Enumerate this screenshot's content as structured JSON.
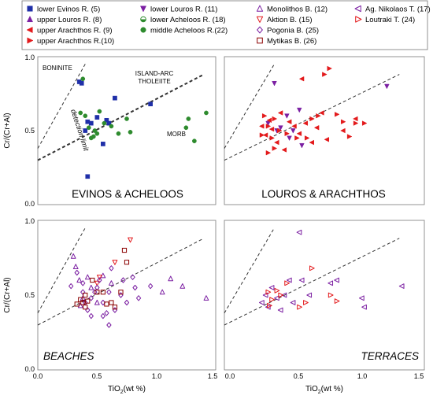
{
  "chart_data": [
    {
      "panel": "EVINOS & ACHELOOS",
      "type": "scatter",
      "xlabel": "",
      "ylabel": "Cr/(Cr+Al)",
      "xlim": [
        0,
        1.5
      ],
      "ylim": [
        0,
        1.0
      ],
      "xticks": [],
      "yticks": [
        "0.0",
        "0.5",
        "1.0"
      ],
      "annotations": [
        "BONINITE",
        "ISLAND-ARC",
        "THOLEIITE",
        "MORB",
        "detection limit"
      ],
      "series": [
        {
          "name": "lower Evinos R. (5)",
          "points": [
            [
              0.35,
              0.83
            ],
            [
              0.37,
              0.82
            ],
            [
              0.4,
              0.5
            ],
            [
              0.42,
              0.56
            ],
            [
              0.45,
              0.55
            ],
            [
              0.5,
              0.59
            ],
            [
              0.55,
              0.41
            ],
            [
              0.58,
              0.57
            ],
            [
              0.6,
              0.55
            ],
            [
              0.65,
              0.72
            ],
            [
              0.95,
              0.68
            ],
            [
              0.42,
              0.19
            ]
          ]
        },
        {
          "name": "middle Acheloos R.(22)",
          "points": [
            [
              0.36,
              0.62
            ],
            [
              0.38,
              0.85
            ],
            [
              0.4,
              0.6
            ],
            [
              0.43,
              0.52
            ],
            [
              0.45,
              0.45
            ],
            [
              0.48,
              0.5
            ],
            [
              0.52,
              0.63
            ],
            [
              0.56,
              0.55
            ],
            [
              0.62,
              0.53
            ],
            [
              0.68,
              0.48
            ],
            [
              0.75,
              0.58
            ],
            [
              0.78,
              0.49
            ],
            [
              1.25,
              0.52
            ],
            [
              1.27,
              0.58
            ],
            [
              1.32,
              0.43
            ],
            [
              1.42,
              0.62
            ],
            [
              0.47,
              0.46
            ],
            [
              0.5,
              0.48
            ]
          ]
        }
      ]
    },
    {
      "panel": "LOUROS & ARACHTHOS",
      "type": "scatter",
      "xlim": [
        0,
        1.5
      ],
      "ylim": [
        0,
        1.0
      ],
      "series": [
        {
          "name": "lower Louros R. (11)",
          "points": [
            [
              0.4,
              0.82
            ],
            [
              0.45,
              0.52
            ],
            [
              0.5,
              0.6
            ],
            [
              0.52,
              0.45
            ],
            [
              0.55,
              0.5
            ],
            [
              0.6,
              0.64
            ],
            [
              0.62,
              0.4
            ],
            [
              1.3,
              0.8
            ],
            [
              0.35,
              0.55
            ],
            [
              0.42,
              0.5
            ]
          ]
        },
        {
          "name": "upper Arachthos R. (9)",
          "points": [
            [
              0.3,
              0.53
            ],
            [
              0.33,
              0.47
            ],
            [
              0.36,
              0.57
            ],
            [
              0.38,
              0.51
            ],
            [
              0.42,
              0.42
            ],
            [
              0.45,
              0.62
            ],
            [
              0.48,
              0.37
            ],
            [
              0.52,
              0.56
            ],
            [
              0.56,
              0.53
            ],
            [
              0.6,
              0.48
            ],
            [
              0.65,
              0.55
            ],
            [
              0.7,
              0.42
            ],
            [
              0.74,
              0.52
            ],
            [
              0.78,
              0.62
            ],
            [
              0.82,
              0.44
            ],
            [
              0.95,
              0.5
            ],
            [
              1.05,
              0.58
            ],
            [
              0.62,
              0.85
            ]
          ]
        },
        {
          "name": "upper Arachthos R.(10)",
          "points": [
            [
              0.3,
              0.47
            ],
            [
              0.32,
              0.6
            ],
            [
              0.35,
              0.53
            ],
            [
              0.38,
              0.45
            ],
            [
              0.4,
              0.58
            ],
            [
              0.44,
              0.5
            ],
            [
              0.5,
              0.48
            ],
            [
              0.58,
              0.45
            ],
            [
              0.66,
              0.45
            ],
            [
              0.7,
              0.58
            ],
            [
              0.75,
              0.6
            ],
            [
              0.8,
              0.88
            ],
            [
              0.84,
              0.92
            ],
            [
              0.9,
              0.61
            ],
            [
              0.95,
              0.56
            ],
            [
              1.0,
              0.46
            ],
            [
              1.05,
              0.55
            ],
            [
              1.12,
              0.55
            ],
            [
              0.35,
              0.35
            ],
            [
              0.4,
              0.38
            ]
          ]
        }
      ]
    },
    {
      "panel": "BEACHES",
      "type": "scatter",
      "xlabel": "TiO2(wt %)",
      "ylabel": "Cr/(Cr+Al)",
      "xlim": [
        0,
        1.5
      ],
      "ylim": [
        0,
        1.0
      ],
      "xticks": [
        "0.0",
        "0.5",
        "1.0",
        "1.5"
      ],
      "yticks": [
        "0.0",
        "0.5",
        "1.0"
      ],
      "series": [
        {
          "name": "Monolithos B. (12)",
          "points": [
            [
              0.3,
              0.76
            ],
            [
              0.32,
              0.69
            ],
            [
              0.35,
              0.6
            ],
            [
              0.36,
              0.43
            ],
            [
              0.38,
              0.48
            ],
            [
              0.42,
              0.62
            ],
            [
              0.45,
              0.55
            ],
            [
              0.5,
              0.45
            ],
            [
              0.55,
              0.63
            ],
            [
              0.62,
              0.58
            ],
            [
              1.05,
              0.52
            ],
            [
              1.12,
              0.61
            ],
            [
              1.22,
              0.56
            ],
            [
              1.42,
              0.48
            ]
          ]
        },
        {
          "name": "Aktion B. (15)",
          "points": [
            [
              0.78,
              0.87
            ],
            [
              0.5,
              0.58
            ],
            [
              0.52,
              0.62
            ],
            [
              0.65,
              0.72
            ]
          ]
        },
        {
          "name": "Pogonia B. (25)",
          "points": [
            [
              0.28,
              0.56
            ],
            [
              0.33,
              0.65
            ],
            [
              0.38,
              0.52
            ],
            [
              0.4,
              0.45
            ],
            [
              0.42,
              0.4
            ],
            [
              0.45,
              0.48
            ],
            [
              0.48,
              0.52
            ],
            [
              0.52,
              0.6
            ],
            [
              0.55,
              0.45
            ],
            [
              0.58,
              0.38
            ],
            [
              0.6,
              0.52
            ],
            [
              0.62,
              0.68
            ],
            [
              0.65,
              0.4
            ],
            [
              0.7,
              0.5
            ],
            [
              0.72,
              0.6
            ],
            [
              0.75,
              0.45
            ],
            [
              0.8,
              0.62
            ],
            [
              0.82,
              0.55
            ],
            [
              0.85,
              0.48
            ],
            [
              0.95,
              0.56
            ],
            [
              0.6,
              0.3
            ],
            [
              0.55,
              0.36
            ],
            [
              0.45,
              0.36
            ],
            [
              0.5,
              0.55
            ],
            [
              0.38,
              0.58
            ]
          ]
        },
        {
          "name": "Mytikas B. (26)",
          "points": [
            [
              0.33,
              0.44
            ],
            [
              0.36,
              0.47
            ],
            [
              0.38,
              0.45
            ],
            [
              0.4,
              0.5
            ],
            [
              0.42,
              0.46
            ],
            [
              0.46,
              0.6
            ],
            [
              0.5,
              0.52
            ],
            [
              0.55,
              0.52
            ],
            [
              0.58,
              0.44
            ],
            [
              0.62,
              0.45
            ],
            [
              0.65,
              0.42
            ],
            [
              0.7,
              0.52
            ],
            [
              0.73,
              0.8
            ],
            [
              0.75,
              0.72
            ],
            [
              0.4,
              0.42
            ]
          ]
        }
      ]
    },
    {
      "panel": "TERRACES",
      "type": "scatter",
      "xlabel": "TiO2(wt %)",
      "xlim": [
        0,
        1.5
      ],
      "ylim": [
        0,
        1.0
      ],
      "xticks": [
        "0.0",
        "0.5",
        "1.0",
        "1.5"
      ],
      "series": [
        {
          "name": "Ag. Nikolaos T. (17)",
          "points": [
            [
              0.3,
              0.45
            ],
            [
              0.33,
              0.5
            ],
            [
              0.35,
              0.42
            ],
            [
              0.38,
              0.55
            ],
            [
              0.42,
              0.48
            ],
            [
              0.45,
              0.4
            ],
            [
              0.48,
              0.5
            ],
            [
              0.52,
              0.6
            ],
            [
              0.55,
              0.45
            ],
            [
              0.6,
              0.92
            ],
            [
              0.62,
              0.6
            ],
            [
              0.68,
              0.5
            ],
            [
              0.85,
              0.58
            ],
            [
              0.9,
              0.6
            ],
            [
              1.1,
              0.48
            ],
            [
              1.12,
              0.42
            ],
            [
              1.42,
              0.56
            ]
          ]
        },
        {
          "name": "Loutraki T. (24)",
          "points": [
            [
              0.35,
              0.52
            ],
            [
              0.38,
              0.47
            ],
            [
              0.42,
              0.53
            ],
            [
              0.45,
              0.5
            ],
            [
              0.5,
              0.58
            ],
            [
              0.6,
              0.42
            ],
            [
              0.65,
              0.45
            ],
            [
              0.7,
              0.68
            ],
            [
              0.85,
              0.5
            ],
            [
              0.9,
              0.46
            ],
            [
              0.36,
              0.43
            ]
          ]
        }
      ]
    }
  ],
  "legend": {
    "items": [
      {
        "label": "lower Evinos R. (5)",
        "marker": "square",
        "color": "#1f2fa8"
      },
      {
        "label": "upper Louros R. (8)",
        "marker": "triangle-up",
        "color": "#7b1fa2"
      },
      {
        "label": "upper Arachthos R. (9)",
        "marker": "triangle-left",
        "color": "#e31a1c"
      },
      {
        "label": "upper Arachthos R.(10)",
        "marker": "triangle-right",
        "color": "#e31a1c"
      },
      {
        "label": "lower Louros R. (11)",
        "marker": "triangle-down",
        "color": "#7b1fa2"
      },
      {
        "label": "lower Acheloos R. (18)",
        "marker": "circle-half",
        "color": "#2e8b2e"
      },
      {
        "label": "middle Acheloos R.(22)",
        "marker": "circle",
        "color": "#2e8b2e"
      },
      {
        "label": "Monolithos B. (12)",
        "marker": "triangle-up-open",
        "color": "#7b1fa2"
      },
      {
        "label": "Aktion B. (15)",
        "marker": "triangle-down-open",
        "color": "#e31a1c"
      },
      {
        "label": "Pogonia B. (25)",
        "marker": "diamond-open",
        "color": "#7b1fa2"
      },
      {
        "label": "Mytikas B. (26)",
        "marker": "square-open",
        "color": "#8b0000"
      },
      {
        "label": "Ag. Nikolaos T. (17)",
        "marker": "triangle-left-open",
        "color": "#7b1fa2"
      },
      {
        "label": "Loutraki T. (24)",
        "marker": "triangle-right-open",
        "color": "#e31a1c"
      }
    ]
  },
  "labels": {
    "y_axis": "Cr/(Cr+Al)",
    "x_axis_prefix": "TiO",
    "x_axis_sub": "2",
    "x_axis_suffix": "(wt %)",
    "y_ticks": [
      "0.0",
      "0.5",
      "1.0"
    ],
    "x_ticks": [
      "0.0",
      "0.5",
      "1.0",
      "1.5"
    ],
    "boninite": "BONINITE",
    "island_arc": "ISLAND-ARC",
    "tholeiite": "THOLEIITE",
    "morb": "MORB",
    "detection_limit": "detection limit",
    "panel1": "EVINOS & ACHELOOS",
    "panel2": "LOUROS & ARACHTHOS",
    "panel3": "BEACHES",
    "panel4": "TERRACES"
  }
}
